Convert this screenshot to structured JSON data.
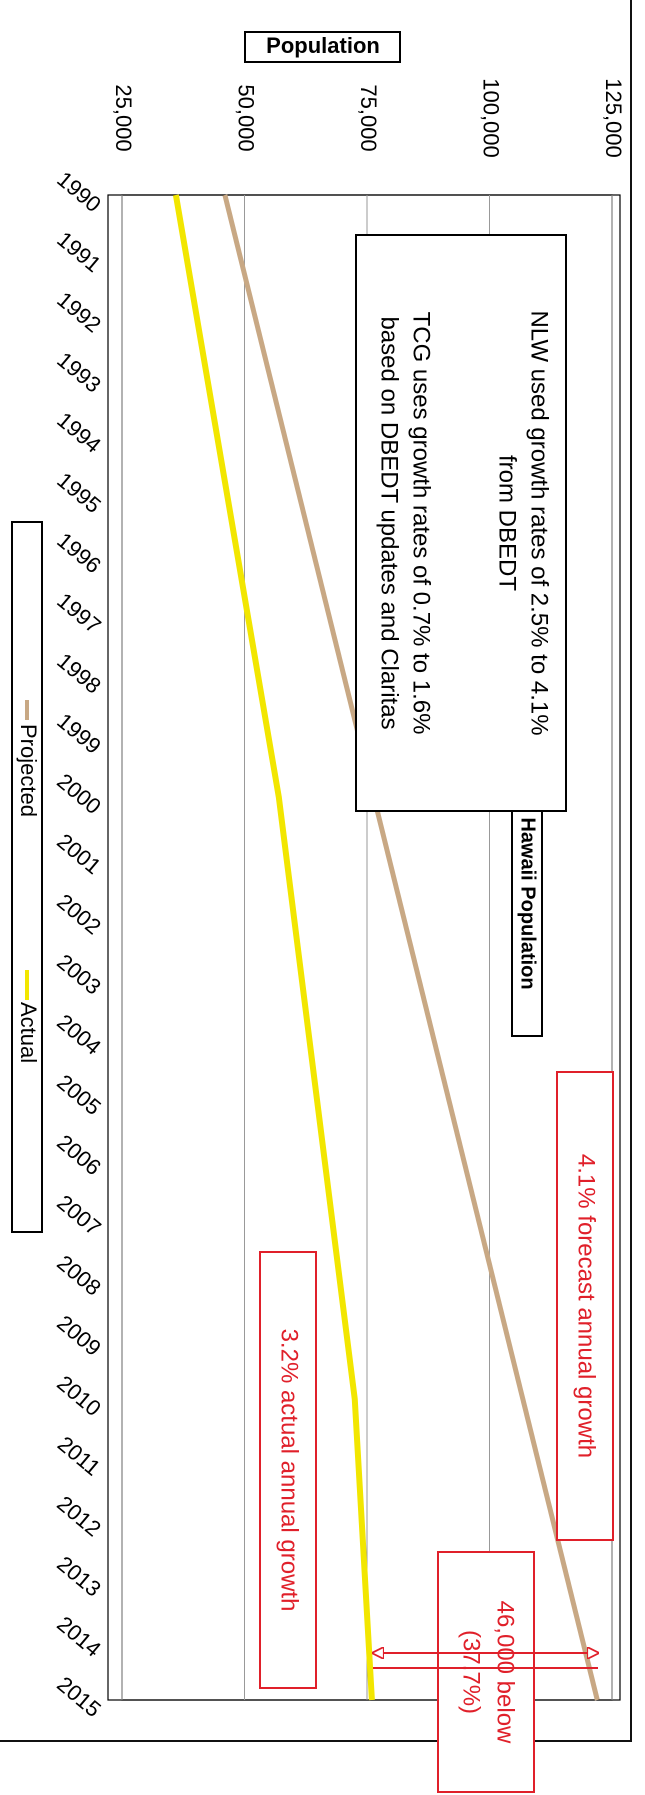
{
  "chart_data": {
    "type": "line",
    "title": "West Hawaii Population",
    "ylabel": "Population",
    "ylim": [
      25000,
      125000
    ],
    "y_ticks": [
      "25,000",
      "50,000",
      "75,000",
      "100,000",
      "125,000"
    ],
    "y_tick_values": [
      25000,
      50000,
      75000,
      100000,
      125000
    ],
    "x": [
      "1990",
      "1991",
      "1992",
      "1993",
      "1994",
      "1995",
      "1996",
      "1997",
      "1998",
      "1999",
      "2000",
      "2001",
      "2002",
      "2003",
      "2004",
      "2005",
      "2006",
      "2007",
      "2008",
      "2009",
      "2010",
      "2011",
      "2012",
      "2013",
      "2014",
      "2015"
    ],
    "series": [
      {
        "name": "Projected",
        "color": "#c8a884",
        "x": [
          1990,
          2015
        ],
        "values": [
          46000,
          122000
        ]
      },
      {
        "name": "Actual",
        "color": "#f2e600",
        "x": [
          1990,
          2000,
          2010,
          2015
        ],
        "values": [
          36000,
          57000,
          72500,
          76000
        ]
      }
    ],
    "legend": [
      "Projected",
      "Actual"
    ],
    "legend_position": "bottom",
    "grid": true,
    "orientation": "rotated 90 degrees clockwise"
  },
  "annotations": {
    "note_line1": "NLW used growth rates of 2.5% to 4.1%",
    "note_line2": "from DBEDT",
    "note_line3": "TCG uses growth rates of 0.7% to 1.6%",
    "note_line4": "based on DBEDT updates and Claritas",
    "forecast_growth": "4.1% forecast annual growth",
    "actual_growth": "3.2% actual annual growth",
    "below_line1": "46,000 below",
    "below_line2": "(37.7%)",
    "accent_color": "#e0202a"
  }
}
